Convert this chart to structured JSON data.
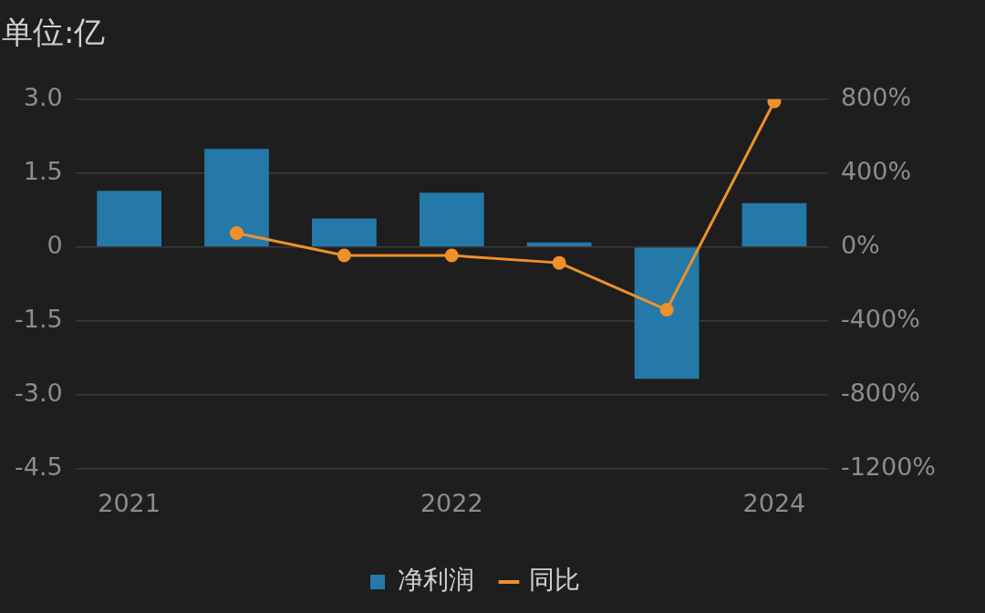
{
  "chart_data": {
    "type": "bar",
    "title": "单位:亿",
    "categories": [
      "2021",
      null,
      null,
      "2022",
      null,
      null,
      "2024"
    ],
    "series": [
      {
        "name": "净利润",
        "type": "bar",
        "color": "#2479a8",
        "values": [
          1.14,
          1.99,
          0.58,
          1.1,
          0.09,
          -2.68,
          0.89
        ]
      },
      {
        "name": "同比",
        "type": "line",
        "axis": "y2",
        "color": "#f0902a",
        "values": [
          null,
          75,
          -46,
          -46,
          -86,
          -340,
          788
        ]
      }
    ],
    "ylim": [
      -4.5,
      3
    ],
    "yticks": [
      {
        "value": -4.5,
        "label": "-4.5"
      },
      {
        "value": -3,
        "label": "-3.0"
      },
      {
        "value": -1.5,
        "label": "-1.5"
      },
      0,
      {
        "value": 1.5,
        "label": "1.5"
      },
      {
        "value": 3,
        "label": "3.0"
      }
    ],
    "y2lim": [
      -1200,
      800
    ],
    "y2ticks": [
      {
        "value": -1200,
        "label": "-1200%"
      },
      {
        "value": -800,
        "label": "-800%"
      },
      {
        "value": -400,
        "label": "-400%"
      },
      {
        "value": 0,
        "label": "0%"
      },
      {
        "value": 400,
        "label": "400%"
      },
      {
        "value": 800,
        "label": "800%"
      }
    ],
    "grid": "y",
    "legend": "bottom",
    "marker": "circle",
    "line_style": "solid"
  }
}
